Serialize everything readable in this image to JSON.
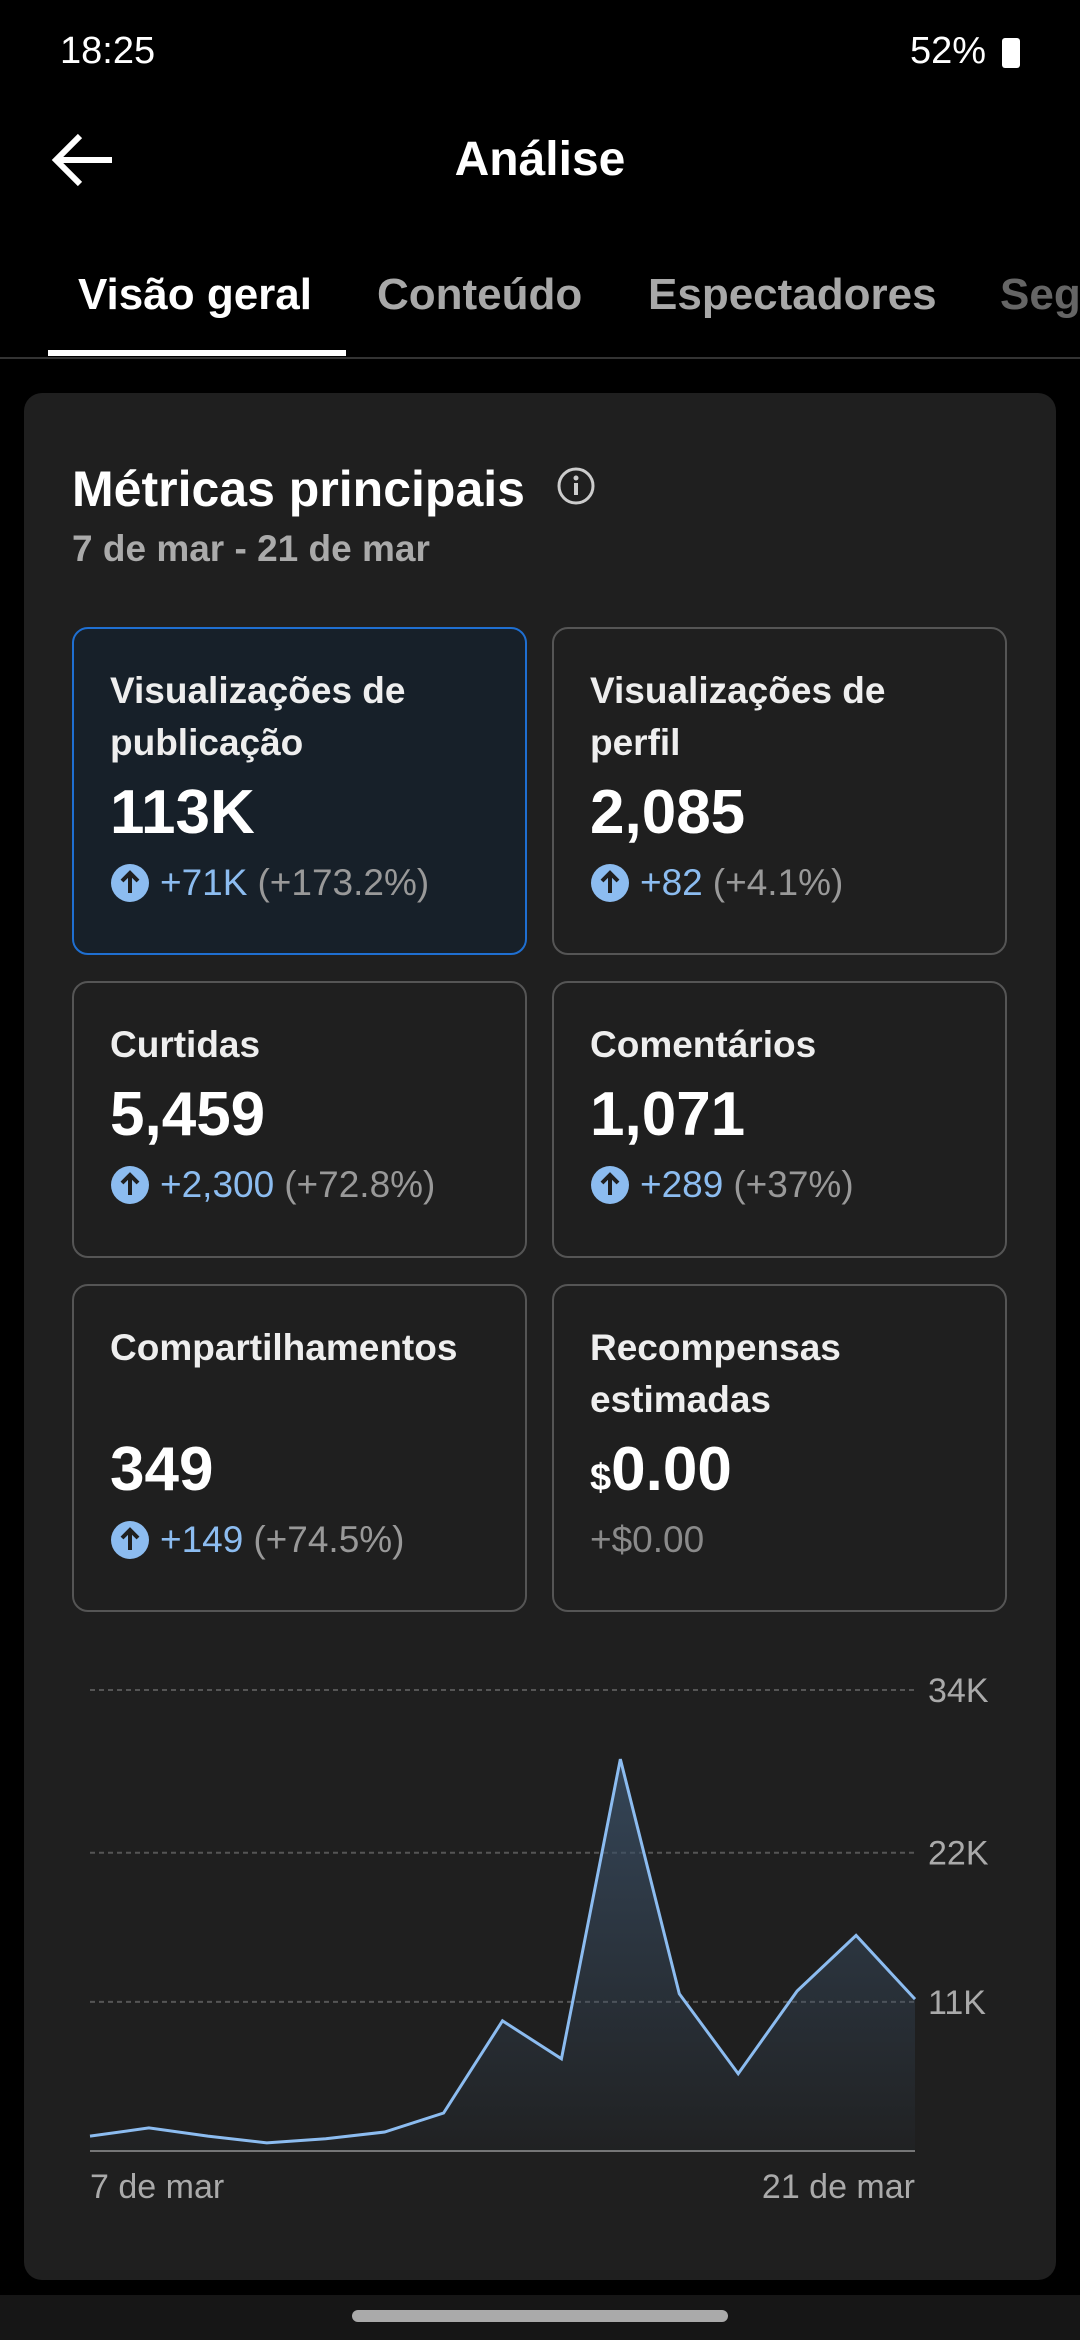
{
  "status_bar": {
    "time": "18:25",
    "battery": "52%"
  },
  "header": {
    "title": "Análise"
  },
  "tabs": [
    "Visão geral",
    "Conteúdo",
    "Espectadores",
    "Seg"
  ],
  "card": {
    "title": "Métricas principais",
    "date_range": "7 de mar - 21 de mar",
    "metrics": [
      {
        "label": "Visualizações de publicação",
        "value": "113K",
        "change": "+71K",
        "change_pct": "(+173.2%)"
      },
      {
        "label": "Visualizações de perfil",
        "value": "2,085",
        "change": "+82",
        "change_pct": "(+4.1%)"
      },
      {
        "label": "Curtidas",
        "value": "5,459",
        "change": "+2,300",
        "change_pct": "(+72.8%)"
      },
      {
        "label": "Comentários",
        "value": "1,071",
        "change": "+289",
        "change_pct": "(+37%)"
      },
      {
        "label": "Compartilhamentos",
        "value": "349",
        "change": "+149",
        "change_pct": "(+74.5%)"
      },
      {
        "label": "Recompensas estimadas",
        "currency": "$",
        "value": "0.00",
        "change": "+$0.00"
      }
    ]
  },
  "chart_data": {
    "type": "line",
    "color": "#8cbcf0",
    "categories": [
      "7 de mar",
      null,
      null,
      null,
      null,
      null,
      null,
      null,
      null,
      null,
      null,
      null,
      null,
      null,
      "21 de mar"
    ],
    "values": [
      1100,
      1700,
      1100,
      600,
      900,
      1400,
      2800,
      9600,
      6800,
      28900,
      11600,
      5700,
      11800,
      15900,
      11200
    ],
    "ylim": [
      0,
      34000
    ],
    "yticks": [
      {
        "value": 11000,
        "label": "11K"
      },
      {
        "value": 22000,
        "label": "22K"
      },
      {
        "value": 34000,
        "label": "34K"
      }
    ],
    "grid": true
  }
}
